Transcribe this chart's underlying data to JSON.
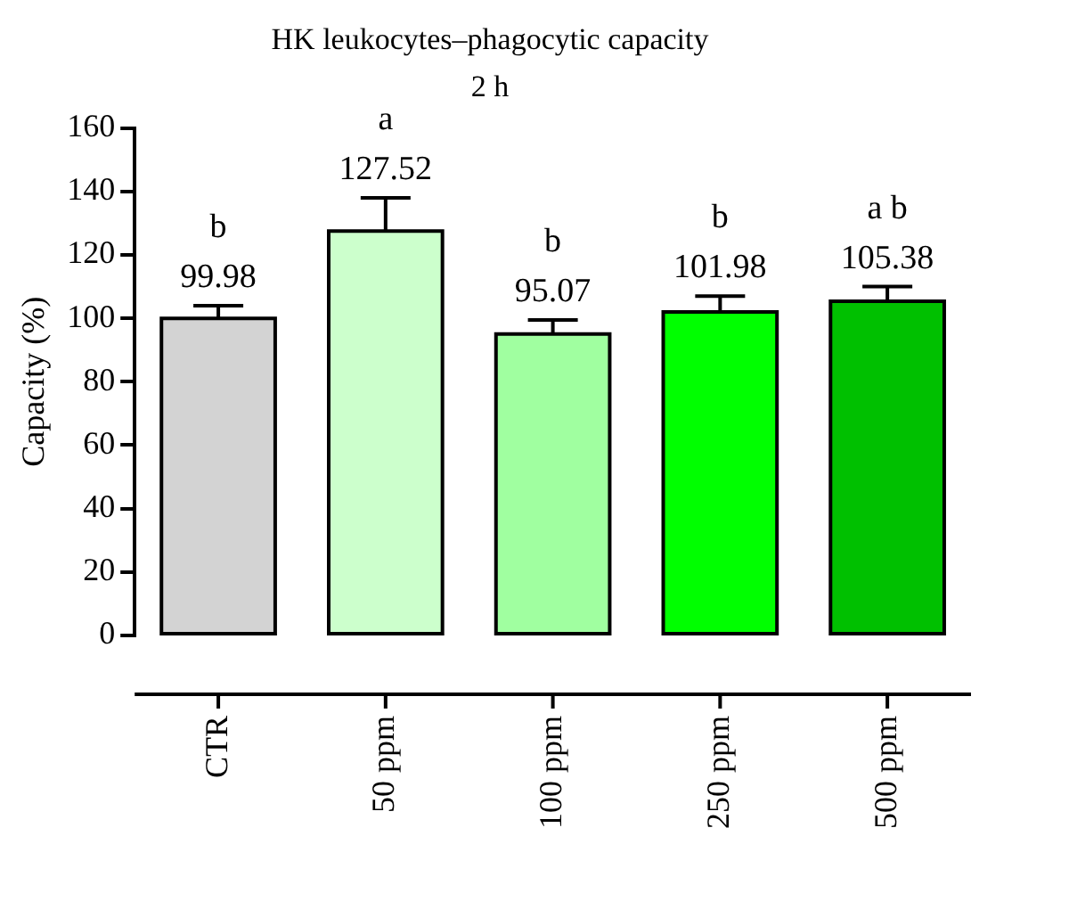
{
  "chart_data": {
    "type": "bar",
    "title": "HK leukocytes–phagocytic capacity",
    "subtitle": "2 h",
    "ylabel": "Capacity (%)",
    "categories": [
      "CTR",
      "50 ppm",
      "100 ppm",
      "250 ppm",
      "500 ppm"
    ],
    "values": [
      99.98,
      127.52,
      95.07,
      101.98,
      105.38
    ],
    "colors": [
      "#d3d3d3",
      "#ccffcc",
      "#a0ffa0",
      "#00ff00",
      "#00c000"
    ],
    "errors": [
      [
        99.98,
        104
      ],
      [
        127.52,
        138
      ],
      [
        95.07,
        99.5
      ],
      [
        101.98,
        107
      ],
      [
        105.38,
        110
      ]
    ],
    "data_labels": true,
    "annotations": [
      {
        "text": "b",
        "x": "CTR",
        "y": 104
      },
      {
        "text": "a",
        "x": "50 ppm",
        "y": 138
      },
      {
        "text": "b",
        "x": "100 ppm",
        "y": 99.5
      },
      {
        "text": "b",
        "x": "250 ppm",
        "y": 107
      },
      {
        "text": "a b",
        "x": "500 ppm",
        "y": 110
      }
    ],
    "ylim": [
      0,
      160
    ],
    "yticks": [
      0,
      20,
      40,
      60,
      80,
      100,
      120,
      140,
      160
    ],
    "grid": false,
    "legend": false
  }
}
